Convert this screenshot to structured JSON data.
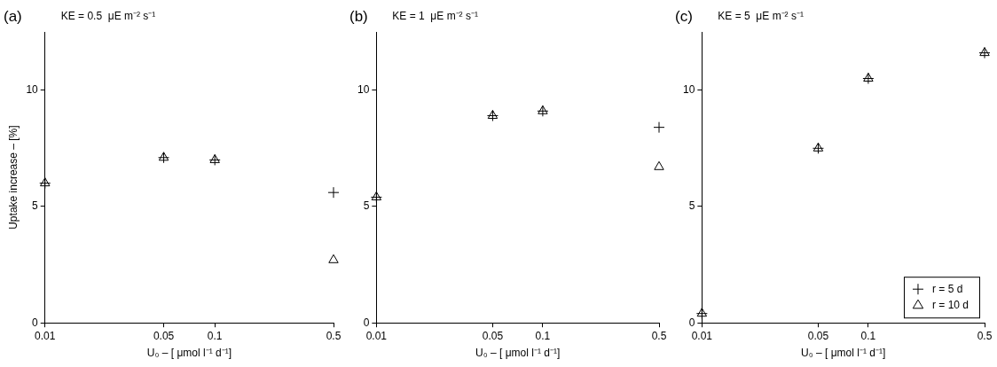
{
  "chart_data": [
    {
      "type": "scatter",
      "title": "(a)",
      "subtitle": "KE = 0.5  μE m⁻² s⁻¹",
      "x_label": "U₀ – [ μmol l⁻¹ d⁻¹]",
      "y_label": "Uptake increase – [%]",
      "x": [
        0.01,
        0.05,
        0.1,
        0.5
      ],
      "series": [
        {
          "name": "r = 5 d",
          "color": "#000000",
          "marker": "plus",
          "values": [
            6.0,
            7.1,
            7.0,
            5.6
          ]
        },
        {
          "name": "r = 10 d",
          "color": "#000000",
          "marker": "triangle",
          "values": [
            6.0,
            7.1,
            7.0,
            2.7
          ]
        }
      ],
      "xlim": [
        0.01,
        0.5
      ],
      "xticks": [
        0.01,
        0.05,
        0.1,
        0.5
      ],
      "log": "x",
      "ylim": [
        0,
        12.5
      ],
      "yticks": [
        0,
        5,
        10
      ],
      "grid": false
    },
    {
      "type": "scatter",
      "title": "(b)",
      "subtitle": "KE = 1  μE m⁻² s⁻¹",
      "x_label": "U₀ – [ μmol l⁻¹ d⁻¹]",
      "x": [
        0.01,
        0.05,
        0.1,
        0.5
      ],
      "series": [
        {
          "name": "r = 5 d",
          "color": "#000000",
          "marker": "plus",
          "values": [
            5.4,
            8.9,
            9.1,
            8.4
          ]
        },
        {
          "name": "r = 10 d",
          "color": "#000000",
          "marker": "triangle",
          "values": [
            5.4,
            8.9,
            9.1,
            6.7
          ]
        }
      ],
      "xlim": [
        0.01,
        0.5
      ],
      "xticks": [
        0.01,
        0.05,
        0.1,
        0.5
      ],
      "log": "x",
      "ylim": [
        0,
        12.5
      ],
      "yticks": [
        0,
        5,
        10
      ],
      "grid": false
    },
    {
      "type": "scatter",
      "title": "(c)",
      "subtitle": "KE = 5  μE m⁻² s⁻¹",
      "x_label": "U₀ – [ μmol l⁻¹ d⁻¹]",
      "x": [
        0.01,
        0.05,
        0.1,
        0.5
      ],
      "series": [
        {
          "name": "r = 5 d",
          "color": "#000000",
          "marker": "plus",
          "values": [
            0.4,
            7.5,
            10.5,
            11.6
          ]
        },
        {
          "name": "r = 10 d",
          "color": "#000000",
          "marker": "triangle",
          "values": [
            0.4,
            7.5,
            10.5,
            11.6
          ]
        }
      ],
      "xlim": [
        0.01,
        0.5
      ],
      "xticks": [
        0.01,
        0.05,
        0.1,
        0.5
      ],
      "log": "x",
      "ylim": [
        0,
        12.5
      ],
      "yticks": [
        0,
        5,
        10
      ],
      "grid": false,
      "legend": "lower right"
    }
  ]
}
